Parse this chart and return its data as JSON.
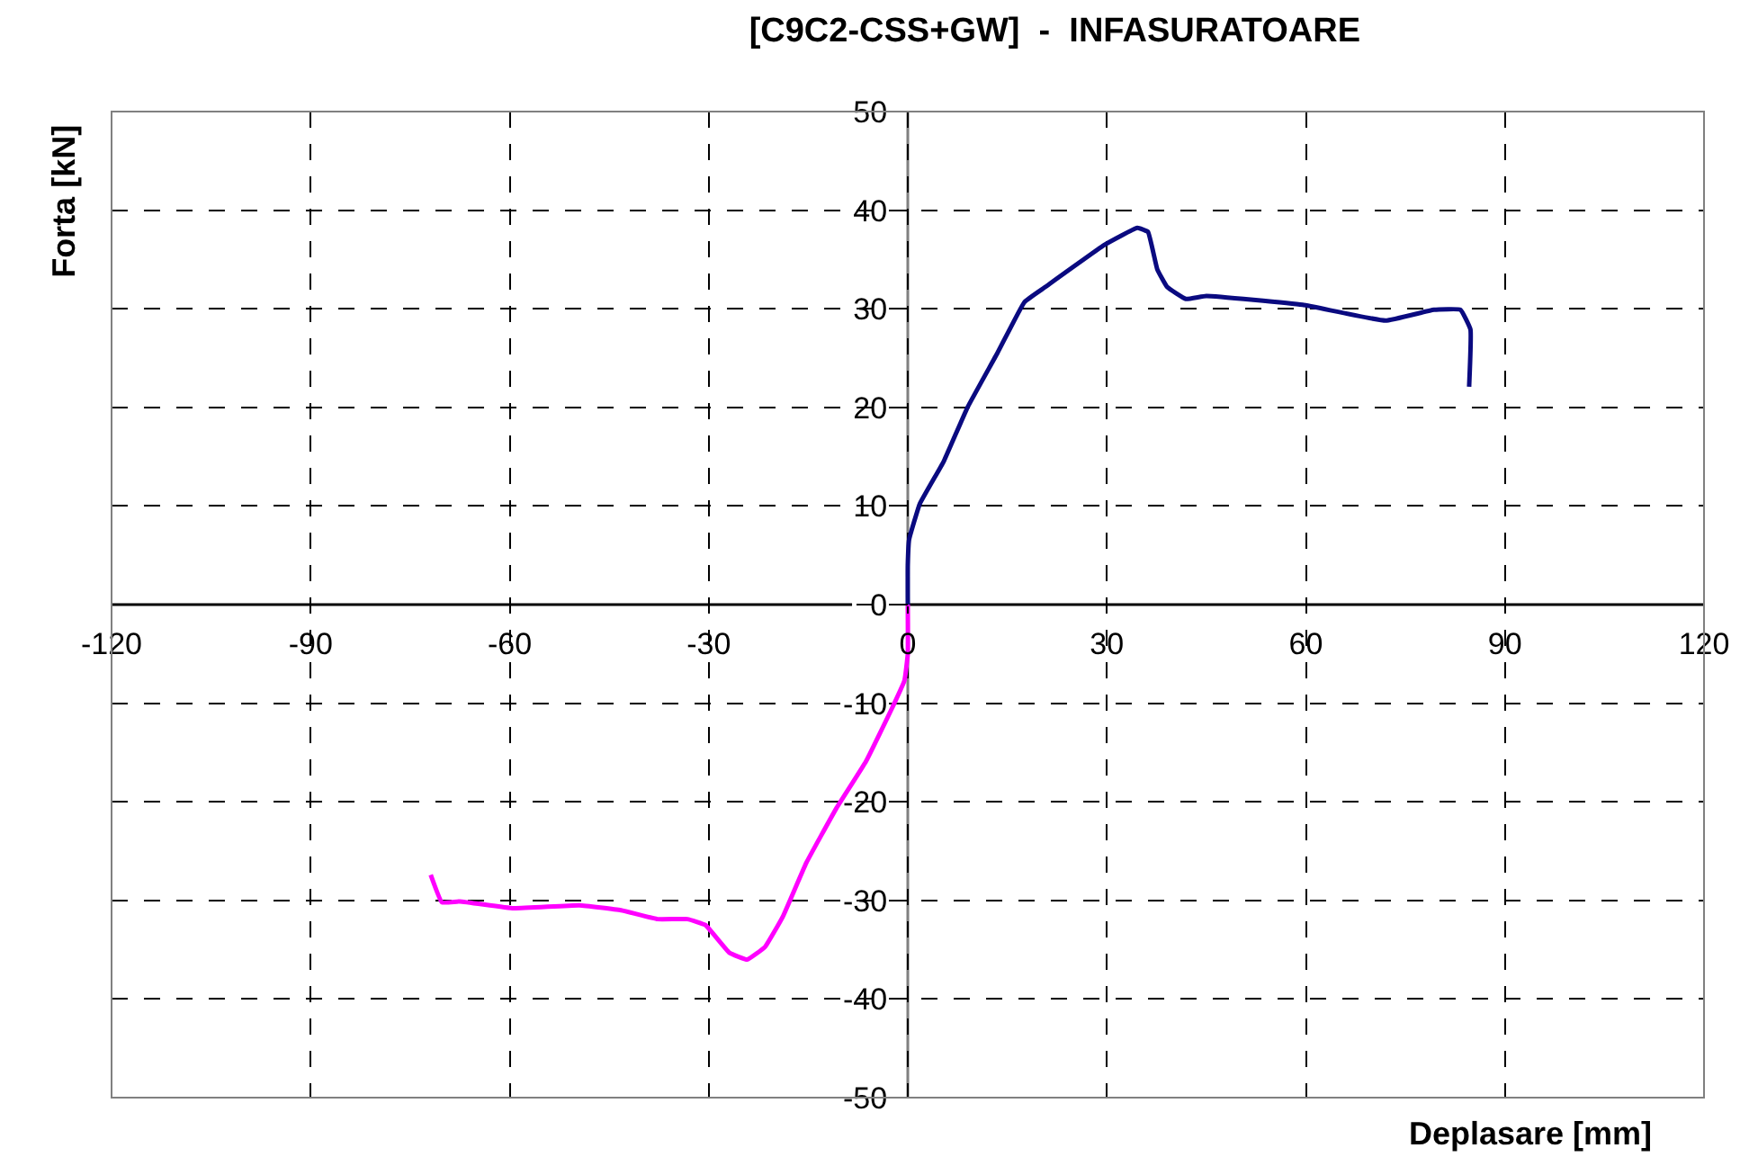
{
  "chart_data": {
    "type": "line",
    "title": "[C9C2-CSS+GW]  -  INFASURATOARE",
    "xlabel": "Deplasare [mm]",
    "ylabel": "Forta [kN]",
    "xlim": [
      -120,
      120
    ],
    "xticks": [
      -120,
      -90,
      -60,
      -30,
      0,
      30,
      60,
      90,
      120
    ],
    "ylim": [
      -50,
      50
    ],
    "yticks": [
      -50,
      -40,
      -30,
      -20,
      -10,
      0,
      10,
      20,
      30,
      40,
      50
    ],
    "grid": true,
    "marker": "none",
    "line_style": "solid",
    "series": [
      {
        "color": "#0a0a80",
        "x": [
          0,
          0,
          0.2,
          1.8,
          5.4,
          9,
          13.5,
          17.6,
          20.7,
          29.7,
          34.6,
          36.2,
          37.6,
          39.1,
          41.9,
          45,
          59.5,
          72,
          79.3,
          83.3,
          84.8,
          84.6
        ],
        "values": [
          0,
          4,
          6.6,
          10.2,
          14.5,
          20,
          25.5,
          30.7,
          32.2,
          36.5,
          38.2,
          37.8,
          34,
          32.2,
          31,
          31.3,
          30.4,
          28.8,
          29.9,
          29.9,
          27.9,
          22.1
        ]
      },
      {
        "color": "#ff00ff",
        "x": [
          0,
          0,
          -0.5,
          -2.3,
          -6.3,
          -10.8,
          -15.3,
          -18.8,
          -21.5,
          -24.2,
          -26.9,
          -30.5,
          -33.2,
          -37.7,
          -43.2,
          -49.5,
          -59.4,
          -67.5,
          -70.2,
          -71.9
        ],
        "values": [
          0,
          -5,
          -7.7,
          -10.4,
          -15.9,
          -20.7,
          -26.2,
          -31.6,
          -34.7,
          -36,
          -35.3,
          -32.5,
          -31.9,
          -31.9,
          -31,
          -30.5,
          -30.8,
          -30.1,
          -30.2,
          -27.4
        ]
      }
    ]
  }
}
